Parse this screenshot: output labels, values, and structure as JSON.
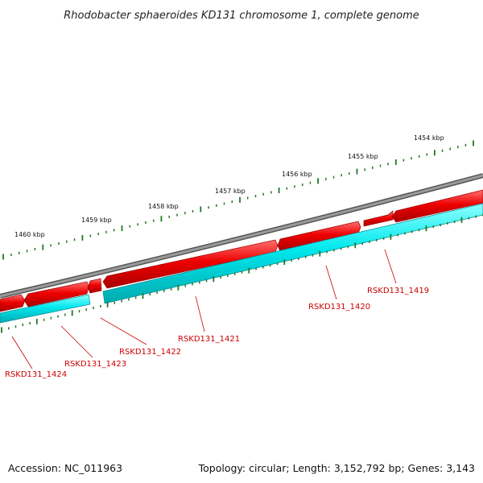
{
  "title": "Rhodobacter sphaeroides KD131 chromosome 1, complete genome",
  "footer": {
    "accession": "Accession: NC_011963",
    "summary": "Topology: circular; Length: 3,152,792 bp; Genes: 3,143"
  },
  "colors": {
    "backbone": "#7f7f7f",
    "forward_strand": "#ee0000",
    "reverse_strand": "#00e8ee",
    "ticks": "#227722",
    "gene_labels": "#cc0000",
    "label_leader": "#cc0000"
  },
  "scale": {
    "unit": "kbp",
    "labels": [
      "1454 kbp",
      "1455 kbp",
      "1456 kbp",
      "1457 kbp",
      "1458 kbp",
      "1459 kbp",
      "1460 kbp"
    ]
  },
  "genes": [
    {
      "name": "RSKD131_1419"
    },
    {
      "name": "RSKD131_1420"
    },
    {
      "name": "RSKD131_1421"
    },
    {
      "name": "RSKD131_1422"
    },
    {
      "name": "RSKD131_1423"
    },
    {
      "name": "RSKD131_1424"
    }
  ]
}
